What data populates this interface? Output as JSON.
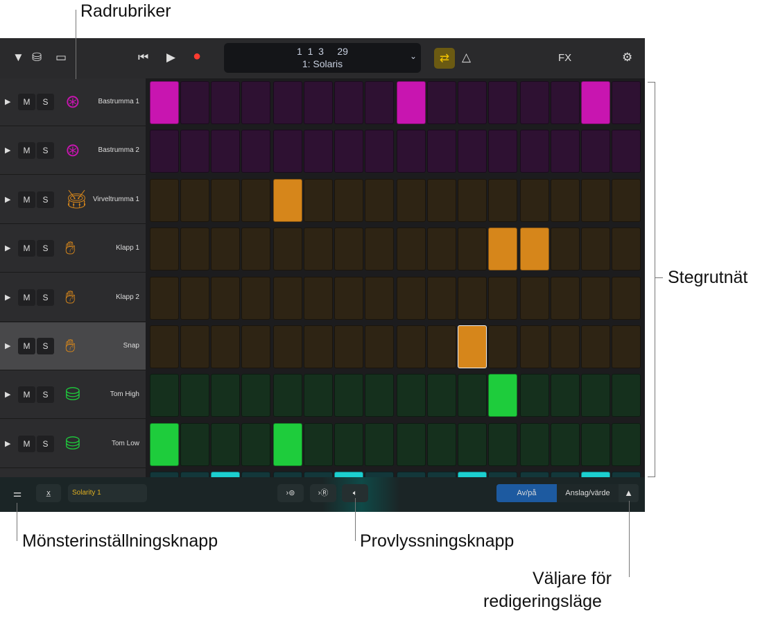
{
  "annotations": {
    "row_headers": "Radrubriker",
    "step_grid": "Stegrutnät",
    "pattern_settings": "Mönsterinställningsknapp",
    "preview": "Provlyssningsknapp",
    "edit_mode_1": "Väljare för",
    "edit_mode_2": "redigeringsläge"
  },
  "toolbar": {
    "position": "1  1  3     29",
    "pattern": "1: Solaris",
    "fx": "FX"
  },
  "rows": [
    {
      "name": "Bastrumma 1",
      "icon": "bass-drum-icon",
      "color": "#c815b0",
      "off": "#2e1132",
      "steps": [
        1,
        0,
        0,
        0,
        0,
        0,
        0,
        0,
        1,
        0,
        0,
        0,
        0,
        0,
        1,
        0
      ]
    },
    {
      "name": "Bastrumma 2",
      "icon": "bass-drum-icon",
      "color": "#c815b0",
      "off": "#2e1132",
      "steps": [
        0,
        0,
        0,
        0,
        0,
        0,
        0,
        0,
        0,
        0,
        0,
        0,
        0,
        0,
        0,
        0
      ]
    },
    {
      "name": "Virveltrumma 1",
      "icon": "snare-drum-icon",
      "color": "#d6861b",
      "off": "#2e2414",
      "steps": [
        0,
        0,
        0,
        0,
        1,
        0,
        0,
        0,
        0,
        0,
        0,
        0,
        0,
        0,
        0,
        0
      ]
    },
    {
      "name": "Klapp 1",
      "icon": "clap-hand-icon",
      "color": "#d6861b",
      "off": "#2e2414",
      "steps": [
        0,
        0,
        0,
        0,
        0,
        0,
        0,
        0,
        0,
        0,
        0,
        1,
        1,
        0,
        0,
        0
      ]
    },
    {
      "name": "Klapp 2",
      "icon": "clap-hand-icon",
      "color": "#d6861b",
      "off": "#2e2414",
      "steps": [
        0,
        0,
        0,
        0,
        0,
        0,
        0,
        0,
        0,
        0,
        0,
        0,
        0,
        0,
        0,
        0
      ]
    },
    {
      "name": "Snap",
      "icon": "snap-hand-icon",
      "color": "#d6861b",
      "off": "#2e2414",
      "steps": [
        0,
        0,
        0,
        0,
        0,
        0,
        0,
        0,
        0,
        0,
        1,
        0,
        0,
        0,
        0,
        0
      ]
    },
    {
      "name": "Tom High",
      "icon": "tom-drum-icon",
      "color": "#1ecc3c",
      "off": "#15301d",
      "steps": [
        0,
        0,
        0,
        0,
        0,
        0,
        0,
        0,
        0,
        0,
        0,
        1,
        0,
        0,
        0,
        0
      ]
    },
    {
      "name": "Tom Low",
      "icon": "tom-drum-icon",
      "color": "#1ecc3c",
      "off": "#15301d",
      "steps": [
        1,
        0,
        0,
        0,
        1,
        0,
        0,
        0,
        0,
        0,
        0,
        0,
        0,
        0,
        0,
        0
      ]
    },
    {
      "name": "",
      "icon": "",
      "color": "#1ccfcf",
      "off": "#13373a",
      "steps": [
        0,
        0,
        1,
        0,
        0,
        0,
        1,
        0,
        0,
        0,
        1,
        0,
        0,
        0,
        1,
        0
      ]
    }
  ],
  "mute_label": "M",
  "solo_label": "S",
  "bottom": {
    "pattern_name": "Solarity 1",
    "on_off": "Av/på",
    "velocity": "Anslag/värde"
  }
}
